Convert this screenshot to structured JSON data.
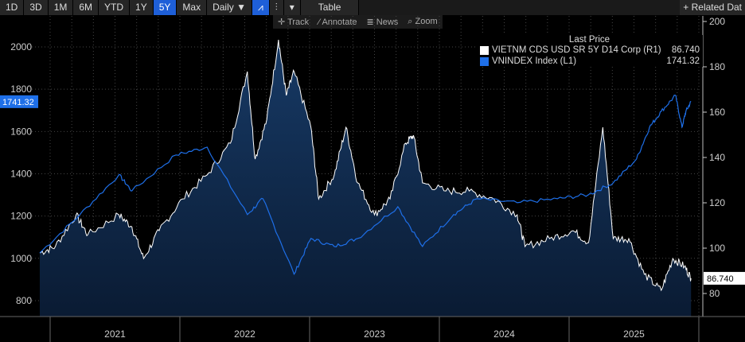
{
  "toolbar": {
    "ranges": [
      "1D",
      "3D",
      "1M",
      "6M",
      "YTD",
      "1Y",
      "5Y",
      "Max"
    ],
    "active": "5Y",
    "frequency": "Daily ▼",
    "table": "Table",
    "related": "+ Related Dat"
  },
  "subbar": {
    "track": "✛ Track",
    "annotate": "⁄ Annotate",
    "news": "≣ News",
    "zoom": "⌕ Zoom"
  },
  "legend": {
    "title": "Last Price",
    "items": [
      {
        "label": "VIETNM CDS USD SR 5Y D14 Corp  (R1)",
        "value": "86.740",
        "color": "#ffffff"
      },
      {
        "label": "VNINDEX Index  (L1)",
        "value": "1741.32",
        "color": "#1e6fe8"
      }
    ]
  },
  "chart_data": {
    "type": "line",
    "title": "",
    "x_ticks": [
      "2021",
      "2022",
      "2023",
      "2024",
      "2025"
    ],
    "left_axis": {
      "ticks": [
        800,
        1000,
        1200,
        1400,
        1600,
        1800,
        2000
      ],
      "last_label": "1741.32"
    },
    "right_axis": {
      "ticks": [
        80,
        100,
        120,
        140,
        160,
        180,
        200
      ],
      "last_label": "86.740"
    },
    "series": [
      {
        "name": "VNINDEX Index (L1)",
        "axis": "left",
        "color": "#1e6fe8",
        "x": [
          2020.92,
          2021.23,
          2021.53,
          2021.63,
          2021.97,
          2022.21,
          2022.52,
          2022.64,
          2022.88,
          2023.01,
          2023.19,
          2023.37,
          2023.68,
          2023.87,
          2024.11,
          2024.29,
          2024.6,
          2024.91,
          2025.15,
          2025.34,
          2025.52,
          2025.62,
          2025.71,
          2025.82,
          2025.87,
          2025.9,
          2025.94
        ],
        "y": [
          1026,
          1207,
          1395,
          1319,
          1489,
          1526,
          1207,
          1282,
          925,
          1094,
          1056,
          1094,
          1244,
          1056,
          1207,
          1282,
          1263,
          1282,
          1301,
          1357,
          1470,
          1620,
          1695,
          1771,
          1620,
          1695,
          1741
        ]
      },
      {
        "name": "VIETNM CDS USD SR 5Y D14 Corp (R1)",
        "axis": "right",
        "color": "#ffffff",
        "area": true,
        "x": [
          2020.92,
          2021.04,
          2021.2,
          2021.29,
          2021.53,
          2021.63,
          2021.72,
          2021.84,
          2022.02,
          2022.21,
          2022.39,
          2022.52,
          2022.58,
          2022.67,
          2022.76,
          2022.82,
          2022.88,
          2023.01,
          2023.07,
          2023.19,
          2023.28,
          2023.37,
          2023.5,
          2023.62,
          2023.74,
          2023.8,
          2023.87,
          2024.05,
          2024.23,
          2024.42,
          2024.6,
          2024.66,
          2024.85,
          2025.03,
          2025.15,
          2025.26,
          2025.34,
          2025.46,
          2025.58,
          2025.71,
          2025.8,
          2025.89,
          2025.94
        ],
        "y": [
          97.9,
          100.7,
          114.7,
          105.9,
          114.7,
          109.4,
          95.4,
          107.7,
          121.7,
          132.3,
          146.3,
          177.9,
          139.3,
          156.8,
          191.9,
          167.4,
          177.9,
          153.3,
          121.7,
          132.3,
          153.3,
          128.8,
          114.7,
          121.7,
          146.3,
          149.8,
          128.8,
          125.2,
          125.2,
          121.7,
          114.7,
          100.7,
          104.2,
          107.7,
          102.4,
          153.3,
          104.2,
          104.2,
          88.4,
          81.4,
          95.4,
          91.9,
          86.7
        ]
      }
    ]
  }
}
